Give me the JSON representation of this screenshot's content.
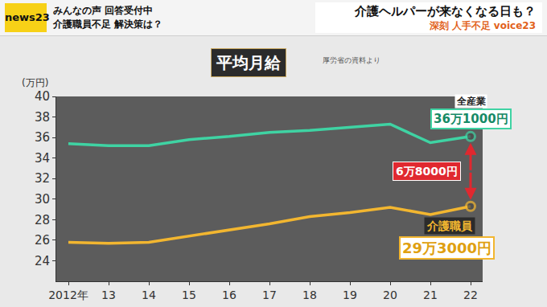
{
  "header": {
    "logo": "news23",
    "lines": [
      "みんなの声 回答受付中",
      "介護職員不足 解決策は？"
    ],
    "headline": "介護ヘルパーが来なくなる日も？",
    "tag": "深刻 人手不足 voice23"
  },
  "chart_data": {
    "type": "line",
    "title": "平均月給",
    "subtitle": "厚労省の資料より",
    "y_label": "(万円)",
    "categories": [
      "2012年",
      "13",
      "14",
      "15",
      "16",
      "17",
      "18",
      "19",
      "20",
      "21",
      "22"
    ],
    "series": [
      {
        "name": "全産業",
        "color": "#3fd3a3",
        "marker": "circle",
        "end_label": "36万1000円",
        "values": [
          35.4,
          35.2,
          35.2,
          35.8,
          36.1,
          36.5,
          36.7,
          37.0,
          37.3,
          35.5,
          36.1
        ]
      },
      {
        "name": "介護職員",
        "color": "#f2b630",
        "marker": "circle",
        "end_label": "29万3000円",
        "values": [
          25.8,
          25.7,
          25.8,
          26.4,
          27.0,
          27.6,
          28.3,
          28.7,
          29.2,
          28.5,
          29.3
        ]
      }
    ],
    "difference_label": "6万8000円",
    "ylim": [
      22,
      40
    ],
    "yticks": [
      24,
      26,
      28,
      30,
      32,
      34,
      36,
      38,
      40
    ],
    "grid": false
  }
}
